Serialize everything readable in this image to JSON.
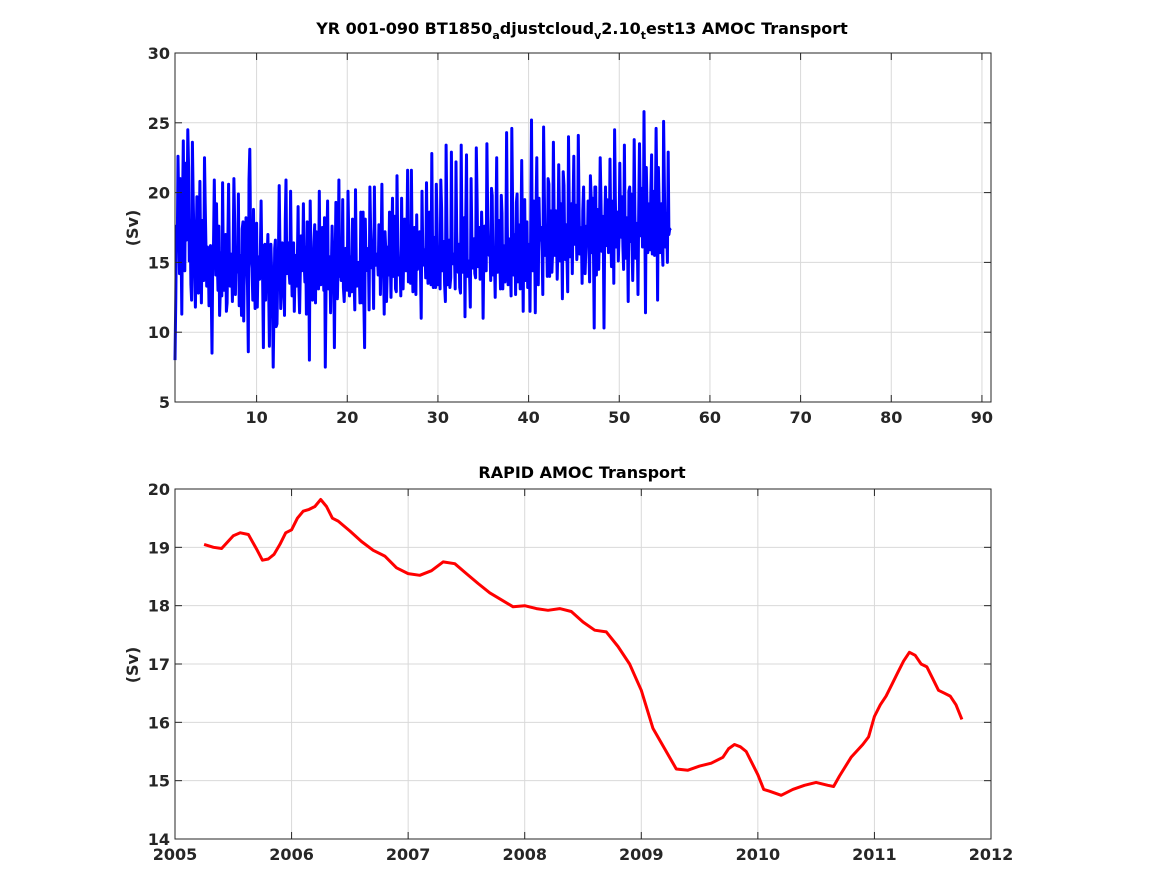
{
  "chart_data": [
    {
      "type": "line",
      "title": "YR 001-090 BT1850",
      "title_segments": [
        {
          "text": "YR 001-090 BT1850",
          "sub": false
        },
        {
          "text": "a",
          "sub": true
        },
        {
          "text": "djustcloud",
          "sub": false
        },
        {
          "text": "v",
          "sub": true
        },
        {
          "text": "2.10",
          "sub": false
        },
        {
          "text": "t",
          "sub": true
        },
        {
          "text": "est13 AMOC Transport",
          "sub": false
        }
      ],
      "xlabel": "",
      "ylabel": "(Sv)",
      "xlim": [
        1,
        91
      ],
      "ylim": [
        5,
        30
      ],
      "xticks": [
        10,
        20,
        30,
        40,
        50,
        60,
        70,
        80,
        90
      ],
      "yticks": [
        5,
        10,
        15,
        20,
        25,
        30
      ],
      "grid": true,
      "series": [
        {
          "color": "#0000ff",
          "x_start": 1,
          "x_step": 0.0833,
          "values": [
            8.0,
            12.5,
            17.6,
            16.3,
            22.6,
            18.7,
            14.2,
            21.0,
            17.0,
            11.3,
            19.5,
            23.7,
            16.3,
            14.4,
            22.1,
            16.6,
            19.3,
            24.5,
            21.8,
            15.1,
            17.9,
            13.4,
            12.3,
            23.6,
            20.0,
            16.8,
            14.3,
            11.8,
            15.2,
            19.7,
            13.2,
            12.8,
            16.7,
            20.8,
            15.3,
            12.1,
            18.0,
            14.5,
            13.7,
            22.5,
            19.2,
            15.9,
            13.3,
            16.1,
            15.9,
            11.9,
            14.3,
            16.2,
            12.6,
            8.5,
            15.6,
            16.2,
            20.9,
            16.8,
            14.1,
            19.2,
            15.1,
            13.0,
            17.6,
            11.2,
            12.9,
            15.7,
            12.6,
            20.7,
            14.9,
            13.0,
            15.2,
            17.0,
            11.5,
            12.1,
            16.8,
            20.6,
            15.0,
            13.3,
            15.6,
            15.2,
            12.2,
            16.1,
            21.0,
            17.8,
            12.7,
            15.8,
            14.3,
            14.4,
            19.9,
            11.9,
            13.9,
            15.5,
            11.2,
            17.4,
            17.9,
            10.8,
            16.0,
            14.3,
            18.2,
            15.3,
            13.3,
            8.6,
            20.9,
            23.1,
            17.5,
            15.2,
            14.6,
            12.3,
            18.8,
            14.6,
            11.7,
            12.6,
            17.8,
            11.8,
            15.4,
            14.5,
            13.8,
            15.5,
            19.4,
            14.6,
            13.9,
            8.9,
            16.2,
            16.3,
            12.3,
            15.8,
            15.4,
            17.0,
            13.0,
            9.0,
            15.8,
            16.3,
            14.2,
            12.6,
            7.5,
            11.3,
            16.0,
            16.6,
            10.4,
            10.6,
            14.1,
            16.0,
            20.5,
            15.8,
            11.7,
            12.9,
            16.4,
            15.2,
            14.9,
            11.2,
            18.1,
            20.9,
            14.2,
            14.4,
            16.4,
            14.4,
            13.5,
            20.1,
            15.4,
            12.6,
            15.5,
            16.4,
            11.5,
            14.7,
            15.5,
            13.3,
            15.3,
            19.0,
            13.3,
            11.4,
            14.7,
            16.9,
            14.4,
            14.6,
            19.2,
            15.2,
            13.6,
            16.1,
            11.3,
            17.9,
            14.0,
            16.2,
            8.0,
            19.4,
            15.7,
            15.5,
            12.3,
            14.2,
            16.5,
            17.7,
            12.1,
            17.2,
            15.1,
            15.2,
            13.1,
            20.1,
            14.7,
            13.4,
            16.5,
            17.5,
            15.1,
            13.0,
            18.2,
            7.5,
            13.4,
            16.2,
            19.4,
            13.1,
            15.2,
            15.4,
            11.4,
            14.3,
            17.6,
            15.1,
            15.7,
            8.9,
            14.7,
            19.3,
            16.1,
            12.4,
            14.9,
            20.9,
            14.0,
            15.8,
            13.7,
            13.7,
            19.5,
            13.2,
            12.2,
            14.1,
            16.0,
            13.3,
            13.0,
            20.1,
            17.2,
            12.6,
            14.3,
            15.4,
            12.9,
            18.1,
            16.1,
            13.9,
            11.6,
            20.2,
            14.5,
            13.3,
            14.6,
            15.0,
            14.0,
            12.1,
            18.6,
            16.8,
            12.1,
            18.6,
            12.4,
            8.9,
            18.1,
            14.4,
            14.7,
            14.6,
            16.0,
            11.6,
            20.4,
            17.5,
            15.9,
            14.6,
            15.4,
            11.7,
            20.4,
            15.7,
            14.8,
            14.9,
            15.6,
            14.1,
            17.7,
            17.2,
            12.7,
            16.3,
            20.6,
            14.6,
            15.4,
            11.3,
            17.2,
            16.0,
            12.2,
            14.2,
            16.1,
            14.1,
            18.6,
            15.6,
            12.5,
            16.6,
            19.6,
            14.0,
            15.8,
            18.3,
            13.1,
            12.9,
            21.2,
            16.2,
            14.1,
            14.1,
            15.0,
            12.6,
            19.6,
            15.6,
            13.1,
            15.8,
            18.1,
            14.5,
            14.4,
            16.6,
            21.6,
            13.6,
            15.7,
            15.0,
            13.5,
            21.6,
            16.3,
            12.9,
            16.8,
            17.5,
            14.4,
            12.7,
            18.4,
            14.5,
            15.5,
            15.0,
            17.2,
            14.3,
            11.0,
            20.1,
            16.1,
            15.3,
            14.8,
            15.9,
            13.9,
            20.7,
            15.6,
            13.5,
            16.6,
            18.6,
            14.0,
            13.4,
            22.8,
            16.6,
            13.2,
            14.5,
            16.8,
            13.2,
            20.6,
            17.8,
            13.4,
            15.0,
            16.1,
            13.1,
            20.9,
            18.9,
            14.4,
            15.2,
            16.5,
            13.4,
            12.2,
            23.4,
            17.8,
            13.4,
            16.3,
            16.6,
            13.2,
            13.9,
            22.9,
            15.5,
            14.9,
            15.5,
            15.6,
            13.1,
            22.2,
            17.2,
            14.5,
            14.3,
            16.3,
            13.2,
            12.8,
            23.4,
            16.4,
            14.3,
            18.1,
            18.2,
            11.1,
            18.5,
            22.7,
            14.0,
            14.4,
            15.1,
            14.3,
            11.8,
            21.0,
            17.0,
            14.6,
            16.1,
            16.7,
            14.2,
            13.9,
            23.2,
            19.6,
            14.7,
            15.6,
            17.5,
            13.8,
            14.9,
            18.6,
            16.4,
            11.0,
            16.1,
            17.6,
            14.4,
            14.4,
            23.5,
            18.3,
            15.7,
            15.5,
            16.5,
            13.7,
            20.3,
            19.8,
            14.1,
            14.1,
            15.0,
            12.5,
            18.2,
            22.5,
            14.3,
            16.5,
            18.0,
            15.1,
            13.1,
            19.8,
            18.5,
            13.1,
            16.2,
            16.0,
            13.6,
            15.5,
            24.3,
            17.6,
            13.4,
            16.7,
            16.3,
            14.6,
            12.6,
            24.6,
            19.2,
            14.1,
            14.8,
            17.0,
            12.7,
            19.3,
            19.9,
            13.6,
            17.7,
            17.5,
            13.1,
            16.6,
            22.3,
            17.2,
            11.5,
            18.3,
            19.5,
            13.7,
            15.6,
            17.9,
            13.2,
            15.6,
            16.3,
            11.5,
            17.3,
            25.2,
            16.7,
            14.4,
            19.4,
            17.2,
            11.4,
            18.6,
            22.5,
            16.0,
            13.4,
            19.6,
            16.6,
            16.8,
            17.5,
            15.8,
            12.7,
            24.7,
            20.2,
            15.5,
            16.0,
            17.0,
            14.0,
            21.0,
            20.6,
            14.0,
            18.7,
            18.0,
            14.3,
            15.7,
            23.6,
            18.5,
            15.5,
            18.7,
            17.6,
            13.8,
            16.2,
            22.0,
            18.9,
            15.1,
            19.2,
            16.8,
            12.4,
            21.5,
            20.5,
            16.1,
            15.2,
            17.7,
            15.2,
            12.9,
            24.0,
            19.3,
            15.4,
            18.4,
            19.2,
            14.2,
            18.7,
            22.6,
            16.3,
            17.3,
            19.1,
            15.2,
            16.2,
            24.1,
            18.4,
            15.6,
            16.3,
            17.5,
            13.5,
            18.7,
            20.4,
            16.5,
            14.2,
            16.1,
            17.6,
            16.4,
            19.4,
            16.1,
            13.6,
            21.2,
            19.8,
            15.7,
            19.6,
            16.4,
            10.3,
            20.4,
            20.4,
            14.1,
            18.8,
            17.2,
            14.5,
            17.5,
            22.5,
            19.4,
            15.8,
            18.3,
            17.7,
            10.3,
            17.4,
            20.4,
            16.2,
            19.5,
            19.0,
            15.7,
            16.2,
            22.4,
            17.1,
            14.7,
            17.4,
            19.4,
            13.5,
            24.5,
            19.8,
            16.1,
            18.2,
            18.6,
            15.1,
            17.0,
            22.1,
            17.5,
            16.8,
            19.7,
            16.1,
            14.5,
            23.4,
            17.1,
            15.3,
            18.2,
            17.5,
            12.2,
            20.1,
            20.4,
            16.5,
            19.9,
            16.6,
            13.7,
            16.6,
            23.8,
            18.5,
            15.3,
            17.8,
            17.0,
            12.7,
            18.6,
            23.5,
            19.5,
            16.9,
            20.3,
            16.1,
            16.8,
            25.8,
            18.4,
            11.4,
            21.8,
            19.2,
            15.7,
            16.9,
            19.2,
            15.9,
            20.0,
            22.7,
            15.6,
            20.1,
            17.3,
            15.5,
            18.4,
            24.6,
            19.5,
            12.3,
            21.8,
            19.4,
            15.7,
            17.7,
            19.2,
            16.3,
            14.8,
            25.1,
            20.4,
            16.1,
            18.5,
            17.5,
            15.0,
            22.9,
            17.0,
            17.4,
            17.3
          ]
        }
      ]
    },
    {
      "type": "line",
      "title": "RAPID AMOC Transport",
      "xlabel": "",
      "ylabel": "(Sv)",
      "xlim": [
        2005,
        2012
      ],
      "ylim": [
        14,
        20
      ],
      "xticks": [
        2005,
        2006,
        2007,
        2008,
        2009,
        2010,
        2011,
        2012
      ],
      "yticks": [
        14,
        15,
        16,
        17,
        18,
        19,
        20
      ],
      "grid": true,
      "series": [
        {
          "color": "#ff0000",
          "x": [
            2005.25,
            2005.33,
            2005.4,
            2005.5,
            2005.56,
            2005.63,
            2005.7,
            2005.75,
            2005.8,
            2005.85,
            2005.9,
            2005.95,
            2006.0,
            2006.05,
            2006.1,
            2006.15,
            2006.2,
            2006.25,
            2006.3,
            2006.35,
            2006.4,
            2006.5,
            2006.6,
            2006.7,
            2006.8,
            2006.9,
            2007.0,
            2007.1,
            2007.2,
            2007.3,
            2007.4,
            2007.5,
            2007.6,
            2007.7,
            2007.8,
            2007.9,
            2008.0,
            2008.1,
            2008.2,
            2008.3,
            2008.4,
            2008.5,
            2008.6,
            2008.7,
            2008.8,
            2008.9,
            2009.0,
            2009.1,
            2009.2,
            2009.3,
            2009.4,
            2009.5,
            2009.6,
            2009.7,
            2009.75,
            2009.8,
            2009.85,
            2009.9,
            2010.0,
            2010.05,
            2010.1,
            2010.2,
            2010.3,
            2010.4,
            2010.5,
            2010.6,
            2010.65,
            2010.7,
            2010.8,
            2010.9,
            2010.95,
            2011.0,
            2011.05,
            2011.1,
            2011.15,
            2011.2,
            2011.25,
            2011.3,
            2011.35,
            2011.4,
            2011.45,
            2011.5,
            2011.55,
            2011.6,
            2011.65,
            2011.7,
            2011.75
          ],
          "values": [
            19.05,
            19.0,
            18.98,
            19.2,
            19.25,
            19.22,
            18.97,
            18.78,
            18.8,
            18.88,
            19.05,
            19.25,
            19.3,
            19.5,
            19.62,
            19.65,
            19.7,
            19.82,
            19.7,
            19.5,
            19.45,
            19.28,
            19.1,
            18.95,
            18.85,
            18.65,
            18.55,
            18.52,
            18.6,
            18.75,
            18.72,
            18.55,
            18.38,
            18.22,
            18.1,
            17.98,
            18.0,
            17.95,
            17.92,
            17.95,
            17.9,
            17.72,
            17.58,
            17.55,
            17.3,
            17.0,
            16.55,
            15.9,
            15.55,
            15.2,
            15.18,
            15.25,
            15.3,
            15.4,
            15.55,
            15.62,
            15.58,
            15.5,
            15.1,
            14.85,
            14.82,
            14.75,
            14.85,
            14.92,
            14.97,
            14.92,
            14.9,
            15.08,
            15.4,
            15.62,
            15.75,
            16.1,
            16.3,
            16.45,
            16.65,
            16.85,
            17.05,
            17.2,
            17.15,
            17.0,
            16.95,
            16.75,
            16.55,
            16.5,
            16.45,
            16.3,
            16.05
          ]
        }
      ]
    }
  ]
}
